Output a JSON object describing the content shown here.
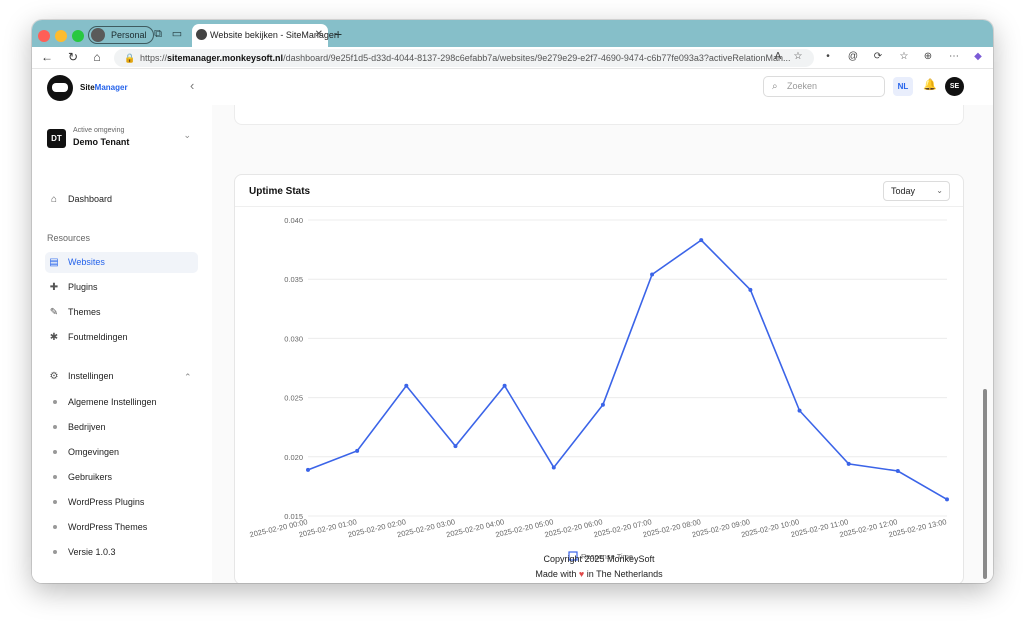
{
  "browser": {
    "profile_label": "Personal",
    "tab_title": "Website bekijken - SiteManager",
    "url_scheme": "https://",
    "url_host": "sitemanager.monkeysoft.nl",
    "url_path": "/dashboard/9e25f1d5-d33d-4044-8137-298c6efabb7a/websites/9e279e29-e2f7-4690-9474-c6b77fe093a3?activeRelationMan..."
  },
  "sidebar": {
    "logo_prefix": "Site",
    "logo_suffix": "Manager",
    "tenant": {
      "badge": "DT",
      "label": "Active omgeving",
      "name": "Demo Tenant"
    },
    "dashboard_label": "Dashboard",
    "resources_label": "Resources",
    "resources": [
      {
        "label": "Websites",
        "icon": "websites-icon",
        "active": true
      },
      {
        "label": "Plugins",
        "icon": "puzzle-icon",
        "active": false
      },
      {
        "label": "Themes",
        "icon": "brush-icon",
        "active": false
      },
      {
        "label": "Foutmeldingen",
        "icon": "bug-icon",
        "active": false
      }
    ],
    "settings_label": "Instellingen",
    "settings_items": [
      "Algemene Instellingen",
      "Bedrijven",
      "Omgevingen",
      "Gebruikers",
      "WordPress Plugins",
      "WordPress Themes",
      "Versie 1.0.3"
    ]
  },
  "topbar": {
    "search_placeholder": "Zoeken",
    "language": "NL",
    "user_initials": "SE"
  },
  "card": {
    "title": "Uptime Stats",
    "period": "Today"
  },
  "chart_data": {
    "type": "line",
    "title": "",
    "xlabel": "",
    "ylabel": "",
    "ylim": [
      0.015,
      0.04
    ],
    "yticks": [
      "0.040",
      "0.035",
      "0.030",
      "0.025",
      "0.020",
      "0.015"
    ],
    "categories": [
      "2025-02-20 00:00",
      "2025-02-20 01:00",
      "2025-02-20 02:00",
      "2025-02-20 03:00",
      "2025-02-20 04:00",
      "2025-02-20 05:00",
      "2025-02-20 06:00",
      "2025-02-20 07:00",
      "2025-02-20 08:00",
      "2025-02-20 09:00",
      "2025-02-20 10:00",
      "2025-02-20 11:00",
      "2025-02-20 12:00",
      "2025-02-20 13:00"
    ],
    "series": [
      {
        "name": "Response Time",
        "color": "#3b64e8",
        "values": [
          0.0189,
          0.0205,
          0.026,
          0.0209,
          0.026,
          0.0191,
          0.0244,
          0.0354,
          0.0383,
          0.0341,
          0.0239,
          0.0194,
          0.0188,
          0.0164
        ]
      }
    ],
    "grid": true,
    "legend_position": "bottom"
  },
  "footer": {
    "copyright": "Copyright 2025 MonkeySoft",
    "made_with": "Made with",
    "location": "in The Netherlands"
  }
}
